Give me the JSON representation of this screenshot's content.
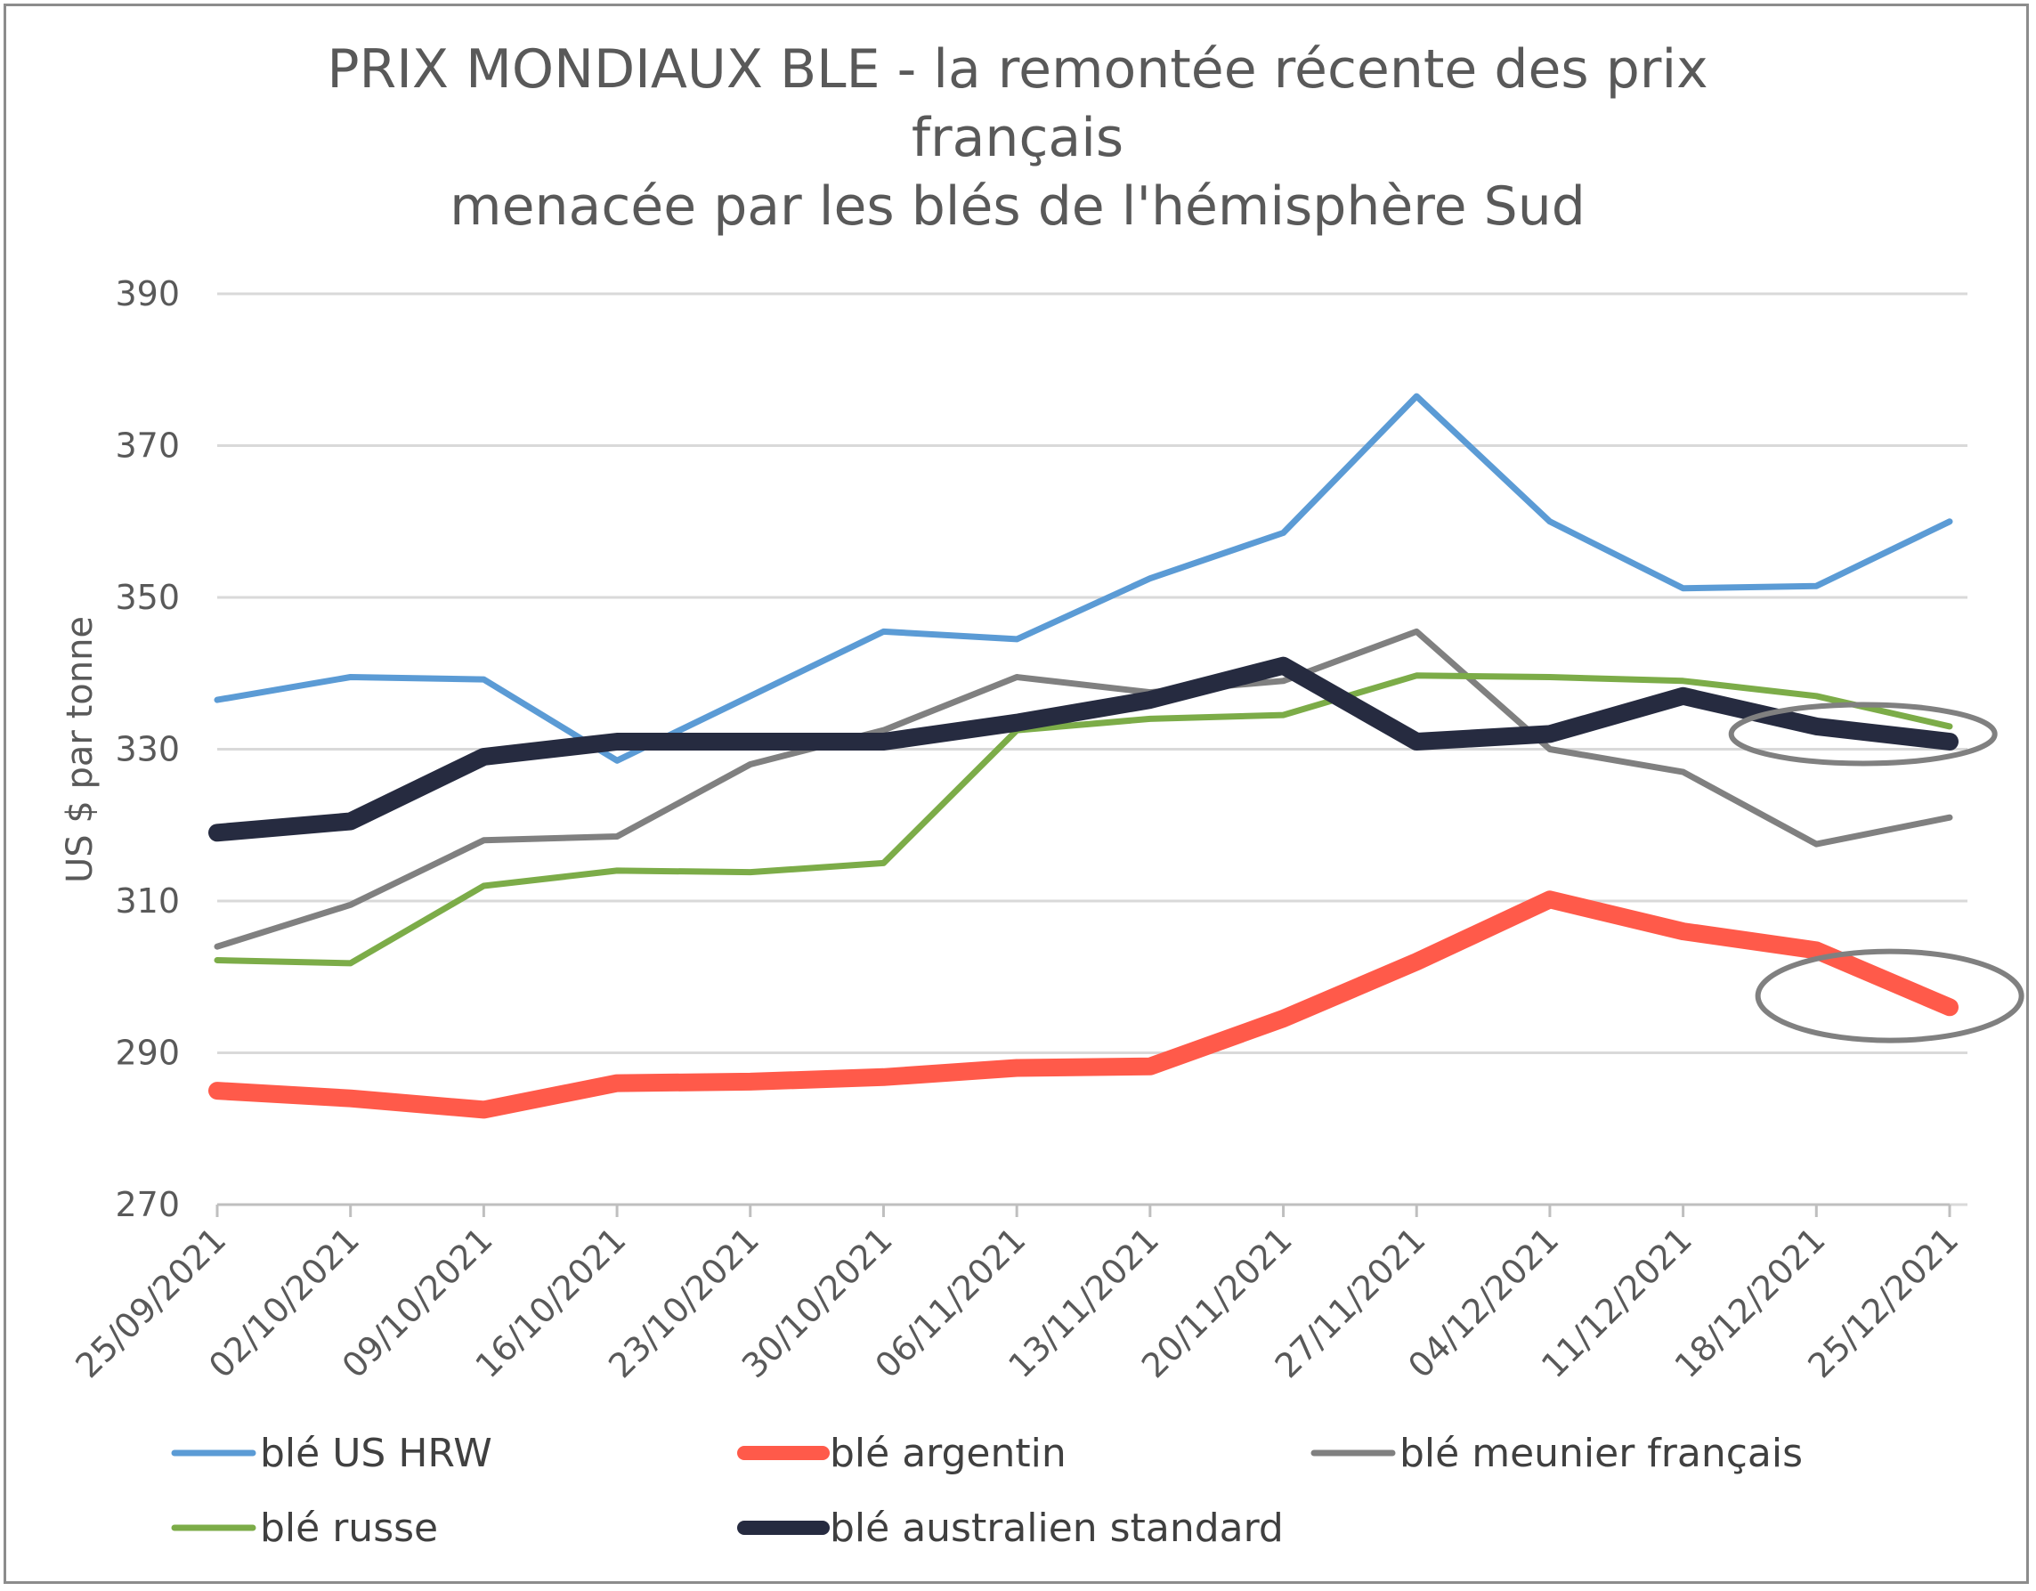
{
  "chart_data": {
    "type": "line",
    "title_lines": [
      "PRIX MONDIAUX BLE - la remontée récente des prix",
      "français",
      "menacée par les blés de l'hémisphère Sud"
    ],
    "ylabel": "US $ par tonne",
    "xlabel": "",
    "ylim": [
      270,
      390
    ],
    "yticks": [
      "270",
      "290",
      "310",
      "330",
      "350",
      "370",
      "390"
    ],
    "categories": [
      "25/09/2021",
      "02/10/2021",
      "09/10/2021",
      "16/10/2021",
      "23/10/2021",
      "30/10/2021",
      "06/11/2021",
      "13/11/2021",
      "20/11/2021",
      "27/11/2021",
      "04/12/2021",
      "11/12/2021",
      "18/12/2021",
      "25/12/2021"
    ],
    "grid": true,
    "legend_position": "bottom",
    "series": [
      {
        "name": "blé US HRW",
        "color": "#5b9bd5",
        "width": 7,
        "values": [
          336.5,
          339.5,
          339.2,
          328.5,
          337,
          345.5,
          344.5,
          352.5,
          358.5,
          376.5,
          360,
          351.2,
          351.5,
          360
        ]
      },
      {
        "name": "blé argentin",
        "color": "#ff5a4a",
        "width": 20,
        "values": [
          285,
          284,
          282.5,
          286,
          286.2,
          286.8,
          288,
          288.2,
          294.5,
          302,
          310.2,
          306,
          303.5,
          296
        ]
      },
      {
        "name": "blé meunier français",
        "color": "#808080",
        "width": 7,
        "values": [
          304,
          309.5,
          318,
          318.5,
          328,
          332.5,
          339.5,
          337.5,
          339,
          345.5,
          330,
          327,
          317.5,
          321
        ]
      },
      {
        "name": "blé russe",
        "color": "#7cac48",
        "width": 7,
        "values": [
          302.2,
          301.8,
          312,
          314,
          313.8,
          315,
          332.5,
          334,
          334.5,
          339.7,
          339.5,
          339,
          337,
          333
        ]
      },
      {
        "name": "blé australien standard",
        "color": "#262b40",
        "width": 20,
        "values": [
          319,
          320.5,
          329,
          331,
          331,
          331,
          333.5,
          336.5,
          341,
          331,
          332,
          337,
          333,
          331
        ]
      }
    ],
    "annotations": [
      {
        "shape": "ellipse",
        "target_series": "blé australien standard",
        "x_index": 12.35,
        "y": 332,
        "color": "#808080"
      },
      {
        "shape": "ellipse",
        "target_series": "blé argentin",
        "x_index": 12.55,
        "y": 297.5,
        "color": "#808080"
      }
    ]
  }
}
